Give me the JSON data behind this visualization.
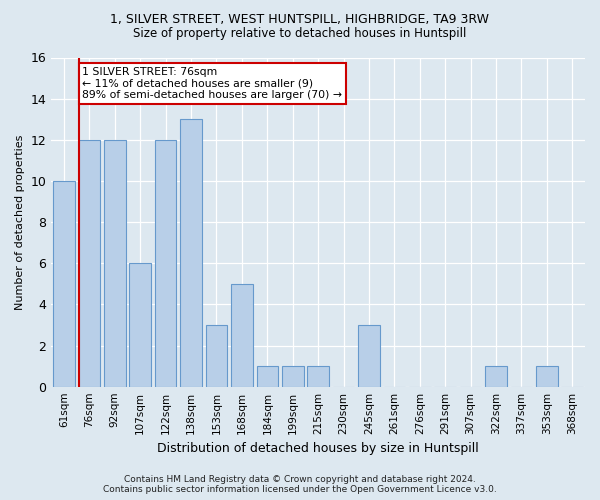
{
  "title": "1, SILVER STREET, WEST HUNTSPILL, HIGHBRIDGE, TA9 3RW",
  "subtitle": "Size of property relative to detached houses in Huntspill",
  "xlabel": "Distribution of detached houses by size in Huntspill",
  "ylabel": "Number of detached properties",
  "categories": [
    "61sqm",
    "76sqm",
    "92sqm",
    "107sqm",
    "122sqm",
    "138sqm",
    "153sqm",
    "168sqm",
    "184sqm",
    "199sqm",
    "215sqm",
    "230sqm",
    "245sqm",
    "261sqm",
    "276sqm",
    "291sqm",
    "307sqm",
    "322sqm",
    "337sqm",
    "353sqm",
    "368sqm"
  ],
  "values": [
    10,
    12,
    12,
    6,
    12,
    13,
    3,
    5,
    1,
    1,
    1,
    0,
    3,
    0,
    0,
    0,
    0,
    1,
    0,
    1,
    0
  ],
  "bar_color": "#b8cfe8",
  "bar_edge_color": "#6699cc",
  "red_line_index": 1,
  "annotation_line1": "1 SILVER STREET: 76sqm",
  "annotation_line2": "← 11% of detached houses are smaller (9)",
  "annotation_line3": "89% of semi-detached houses are larger (70) →",
  "footer": "Contains HM Land Registry data © Crown copyright and database right 2024.\nContains public sector information licensed under the Open Government Licence v3.0.",
  "ylim": [
    0,
    16
  ],
  "yticks": [
    0,
    2,
    4,
    6,
    8,
    10,
    12,
    14,
    16
  ],
  "bg_color": "#dde8f0",
  "plot_bg_color": "#dde8f0",
  "title_fontsize": 9,
  "subtitle_fontsize": 8.5
}
